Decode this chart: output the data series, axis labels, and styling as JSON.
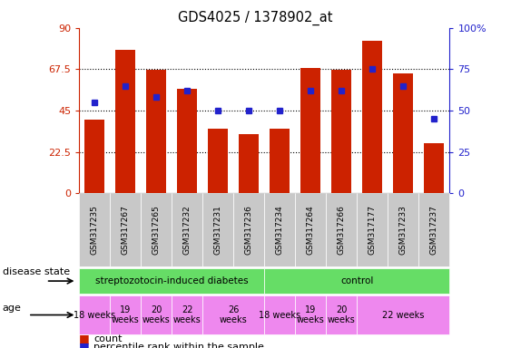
{
  "title": "GDS4025 / 1378902_at",
  "samples": [
    "GSM317235",
    "GSM317267",
    "GSM317265",
    "GSM317232",
    "GSM317231",
    "GSM317236",
    "GSM317234",
    "GSM317264",
    "GSM317266",
    "GSM317177",
    "GSM317233",
    "GSM317237"
  ],
  "counts": [
    40,
    78,
    67,
    57,
    35,
    32,
    35,
    68,
    67,
    83,
    65,
    27
  ],
  "percentiles": [
    55,
    65,
    58,
    62,
    50,
    50,
    50,
    62,
    62,
    75,
    65,
    45
  ],
  "ylim_left": [
    0,
    90
  ],
  "ylim_right": [
    0,
    100
  ],
  "yticks_left": [
    0,
    22.5,
    45,
    67.5,
    90
  ],
  "yticks_right": [
    0,
    25,
    50,
    75,
    100
  ],
  "bar_color": "#cc2200",
  "dot_color": "#2222cc",
  "background_color": "#ffffff",
  "sample_label_bg": "#c8c8c8",
  "disease_color": "#66dd66",
  "age_color": "#ee88ee",
  "legend_count_label": "count",
  "legend_pct_label": "percentile rank within the sample",
  "row_label_disease": "disease state",
  "row_label_age": "age",
  "disease_blocks": [
    {
      "label": "streptozotocin-induced diabetes",
      "start": 0,
      "end": 6
    },
    {
      "label": "control",
      "start": 6,
      "end": 12
    }
  ],
  "age_blocks": [
    {
      "label": "18 weeks",
      "start": 0,
      "end": 1
    },
    {
      "label": "19\nweeks",
      "start": 1,
      "end": 2
    },
    {
      "label": "20\nweeks",
      "start": 2,
      "end": 3
    },
    {
      "label": "22\nweeks",
      "start": 3,
      "end": 4
    },
    {
      "label": "26\nweeks",
      "start": 4,
      "end": 6
    },
    {
      "label": "18 weeks",
      "start": 6,
      "end": 7
    },
    {
      "label": "19\nweeks",
      "start": 7,
      "end": 8
    },
    {
      "label": "20\nweeks",
      "start": 8,
      "end": 9
    },
    {
      "label": "22 weeks",
      "start": 9,
      "end": 12
    }
  ]
}
